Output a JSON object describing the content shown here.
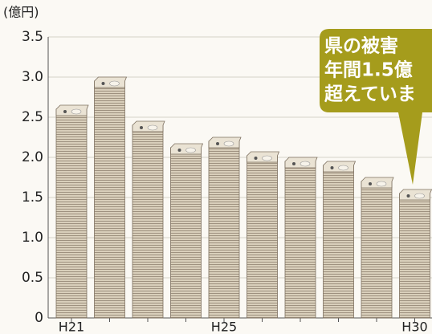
{
  "chart_data": {
    "type": "bar",
    "y_label": "(億円)",
    "categories": [
      "H21",
      null,
      null,
      null,
      "H25",
      null,
      null,
      null,
      null,
      "H30"
    ],
    "values": [
      2.6,
      2.95,
      2.4,
      2.12,
      2.2,
      2.02,
      1.95,
      1.9,
      1.7,
      1.55
    ],
    "color": "#d3c8b3",
    "ylim": [
      0,
      3.5
    ],
    "yticks": [
      0,
      0.5,
      {
        "value": 1,
        "label": "1.0"
      },
      1.5,
      {
        "value": 2,
        "label": "2.0"
      },
      2.5,
      {
        "value": 3,
        "label": "3.0"
      },
      3.5
    ],
    "grid": true,
    "annotation": [
      "県の被害",
      "年間1.5億",
      "超えていま"
    ],
    "annotation_color": "#a59c1c"
  }
}
